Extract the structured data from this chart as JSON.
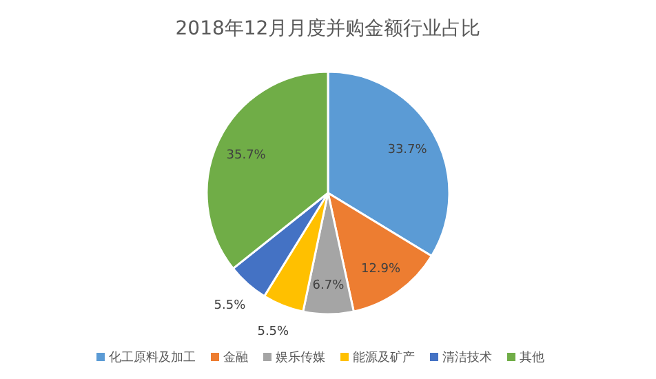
{
  "chart_data": {
    "type": "pie",
    "title": "2018年12月月度并购金额行业占比",
    "categories": [
      "化工原料及加工",
      "金融",
      "娱乐传媒",
      "能源及矿产",
      "清洁技术",
      "其他"
    ],
    "values": [
      33.7,
      12.9,
      6.7,
      5.5,
      5.5,
      35.7
    ],
    "colors": [
      "#5b9bd5",
      "#ed7d31",
      "#a5a5a5",
      "#ffc000",
      "#4472c4",
      "#70ad47"
    ],
    "value_labels": [
      "33.7%",
      "12.9%",
      "6.7%",
      "5.5%",
      "5.5%",
      "35.7%"
    ],
    "legend": "bottom"
  }
}
